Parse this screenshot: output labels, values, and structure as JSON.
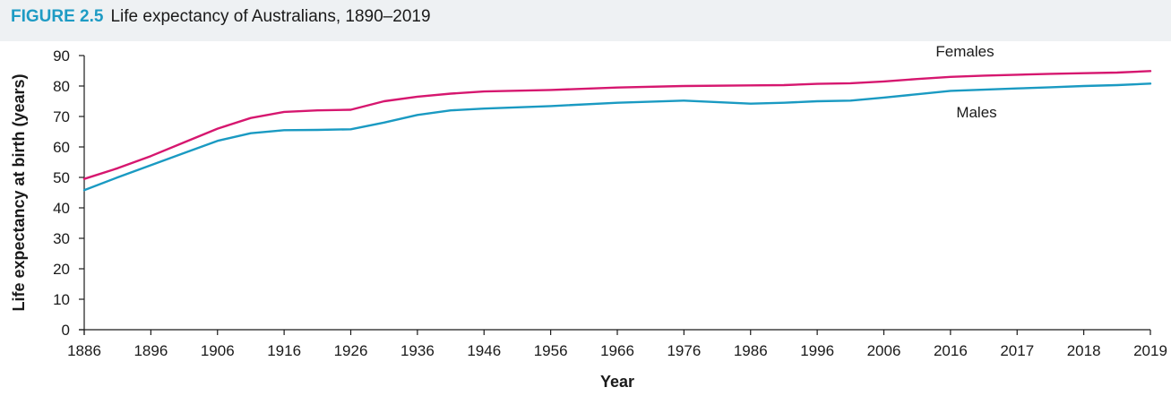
{
  "figure": {
    "label": "FIGURE 2.5",
    "title": "Life expectancy of Australians, 1890–2019"
  },
  "colors": {
    "caption_background": "#eef1f3",
    "figure_label": "#1e9bc4",
    "females_line": "#d6176f",
    "males_line": "#1a9ac2"
  },
  "chart_data": {
    "type": "line",
    "title": "Life expectancy of Australians, 1890–2019",
    "xlabel": "Year",
    "ylabel": "Life expectancy at birth (years)",
    "x_ticks": [
      "1886",
      "1896",
      "1906",
      "1916",
      "1926",
      "1936",
      "1946",
      "1956",
      "1966",
      "1976",
      "1986",
      "1996",
      "2006",
      "2016",
      "2017",
      "2018",
      "2019"
    ],
    "y_ticks": [
      0,
      10,
      20,
      30,
      40,
      50,
      60,
      70,
      80,
      90
    ],
    "ylim": [
      0,
      90
    ],
    "grid": false,
    "series_label_placement": "inline, right side",
    "series": [
      {
        "name": "Females",
        "color": "#d6176f",
        "points": [
          [
            1886,
            49.5
          ],
          [
            1891,
            53
          ],
          [
            1896,
            57
          ],
          [
            1901,
            61.5
          ],
          [
            1906,
            66
          ],
          [
            1911,
            69.5
          ],
          [
            1916,
            71.5
          ],
          [
            1921,
            72
          ],
          [
            1926,
            72.2
          ],
          [
            1931,
            75
          ],
          [
            1936,
            76.5
          ],
          [
            1941,
            77.5
          ],
          [
            1946,
            78.2
          ],
          [
            1956,
            78.7
          ],
          [
            1966,
            79.5
          ],
          [
            1976,
            80
          ],
          [
            1986,
            80.2
          ],
          [
            1991,
            80.3
          ],
          [
            1996,
            80.7
          ],
          [
            2001,
            80.9
          ],
          [
            2006,
            81.5
          ],
          [
            2011,
            82.3
          ],
          [
            2016,
            83
          ],
          [
            2016.5,
            83.4
          ],
          [
            2017,
            83.7
          ],
          [
            2017.5,
            84
          ],
          [
            2018,
            84.2
          ],
          [
            2018.5,
            84.4
          ],
          [
            2019,
            84.9
          ]
        ]
      },
      {
        "name": "Males",
        "color": "#1a9ac2",
        "points": [
          [
            1886,
            45.8
          ],
          [
            1891,
            50
          ],
          [
            1896,
            54
          ],
          [
            1901,
            58
          ],
          [
            1906,
            62
          ],
          [
            1911,
            64.5
          ],
          [
            1916,
            65.5
          ],
          [
            1921,
            65.6
          ],
          [
            1926,
            65.8
          ],
          [
            1931,
            68
          ],
          [
            1936,
            70.5
          ],
          [
            1941,
            72
          ],
          [
            1946,
            72.6
          ],
          [
            1956,
            73.4
          ],
          [
            1966,
            74.5
          ],
          [
            1976,
            75.2
          ],
          [
            1986,
            74.2
          ],
          [
            1991,
            74.5
          ],
          [
            1996,
            75
          ],
          [
            2001,
            75.2
          ],
          [
            2006,
            76.2
          ],
          [
            2011,
            77.3
          ],
          [
            2016,
            78.4
          ],
          [
            2016.5,
            78.8
          ],
          [
            2017,
            79.2
          ],
          [
            2017.5,
            79.6
          ],
          [
            2018,
            80
          ],
          [
            2018.5,
            80.3
          ],
          [
            2019,
            80.8
          ]
        ]
      }
    ]
  }
}
